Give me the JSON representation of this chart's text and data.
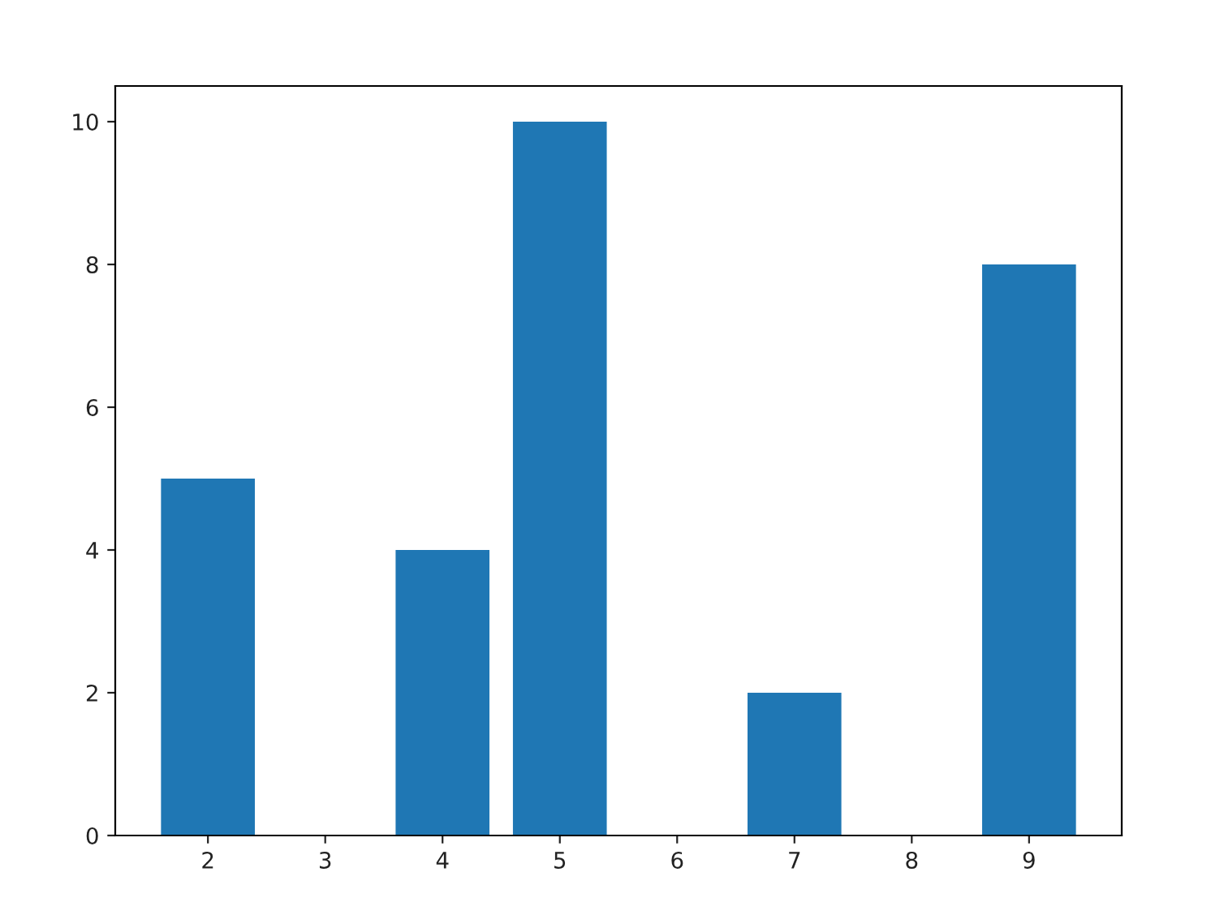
{
  "chart_data": {
    "type": "bar",
    "x": [
      2,
      4,
      5,
      7,
      9
    ],
    "values": [
      5,
      4,
      10,
      2,
      8
    ],
    "color": "#1f77b4",
    "xlim": [
      1.21,
      9.79
    ],
    "xticks": [
      2,
      3,
      4,
      5,
      6,
      7,
      8,
      9
    ],
    "ylim": [
      0,
      10.5
    ],
    "yticks": [
      0,
      2,
      4,
      6,
      8,
      10
    ],
    "grid": false,
    "legend": false
  }
}
